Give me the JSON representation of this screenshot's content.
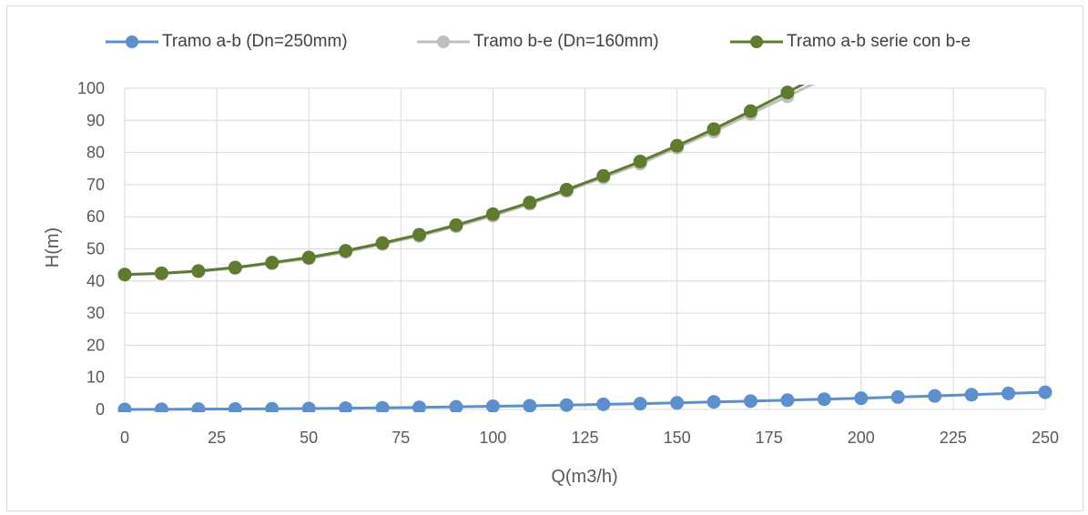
{
  "chart_data": {
    "type": "line",
    "title": "",
    "xlabel": "Q(m3/h)",
    "ylabel": "H(m)",
    "xlim": [
      0,
      250
    ],
    "ylim": [
      0,
      100
    ],
    "xticks": [
      0,
      25,
      50,
      75,
      100,
      125,
      150,
      175,
      200,
      225,
      250
    ],
    "yticks": [
      0,
      10,
      20,
      30,
      40,
      50,
      60,
      70,
      80,
      90,
      100
    ],
    "grid": true,
    "legend_position": "top",
    "series": [
      {
        "name": "Tramo a-b (Dn=250mm)",
        "color": "#5b8fcf",
        "x": [
          0,
          10,
          20,
          30,
          40,
          50,
          60,
          70,
          80,
          90,
          100,
          110,
          120,
          130,
          140,
          150,
          160,
          170,
          180,
          190,
          200,
          210,
          220,
          230,
          240,
          250
        ],
        "values": [
          0,
          0.05,
          0.1,
          0.15,
          0.2,
          0.3,
          0.4,
          0.5,
          0.65,
          0.8,
          1.0,
          1.15,
          1.35,
          1.6,
          1.8,
          2.05,
          2.35,
          2.6,
          2.9,
          3.2,
          3.5,
          3.85,
          4.2,
          4.6,
          5.0,
          5.35
        ]
      },
      {
        "name": "Tramo b-e (Dn=160mm)",
        "color": "#bfbfbf",
        "x": [
          0,
          10,
          20,
          30,
          40,
          50,
          60,
          70,
          80,
          90,
          100,
          110,
          120,
          130,
          140,
          150,
          160,
          170,
          180,
          190
        ],
        "values": [
          42,
          42.3,
          43,
          44,
          45.5,
          47,
          49,
          51.5,
          54,
          57,
          60.3,
          64,
          68,
          72.2,
          76.5,
          81.5,
          86.5,
          92,
          97.5,
          103
        ]
      },
      {
        "name": "Tramo a-b serie con b-e",
        "color": "#5e7b2e",
        "x": [
          0,
          10,
          20,
          30,
          40,
          50,
          60,
          70,
          80,
          90,
          100,
          110,
          120,
          130,
          140,
          150,
          160,
          170,
          180,
          190
        ],
        "values": [
          42,
          42.4,
          43.1,
          44.2,
          45.7,
          47.3,
          49.4,
          51.8,
          54.4,
          57.4,
          60.8,
          64.4,
          68.4,
          72.7,
          77.2,
          82.1,
          87.3,
          92.9,
          98.7,
          104.8
        ]
      }
    ]
  }
}
